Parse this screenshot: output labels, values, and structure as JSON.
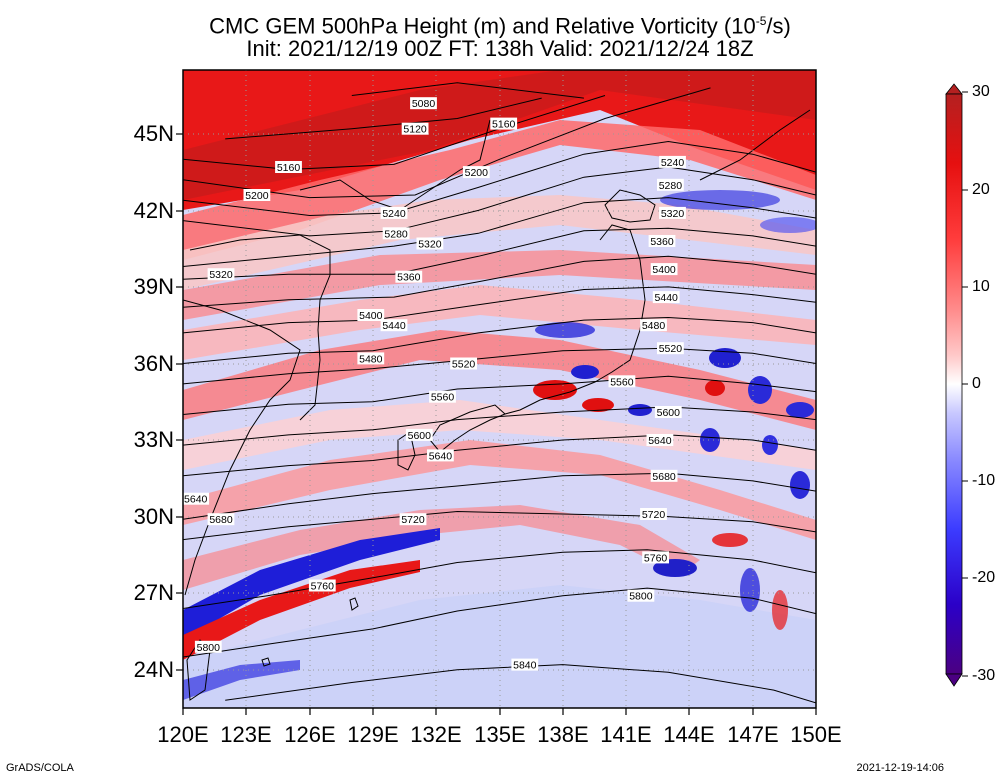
{
  "title": {
    "line1_prefix": "CMC GEM 500hPa Height (m) and Relative Vorticity (10",
    "line1_exp": "-5",
    "line1_suffix": "/s)",
    "line2": "Init: 2021/12/19 00Z  FT: 138h  Valid: 2021/12/24 18Z"
  },
  "axes": {
    "lat_labels": [
      "45N",
      "42N",
      "39N",
      "36N",
      "33N",
      "30N",
      "27N",
      "24N"
    ],
    "lon_labels": [
      "120E",
      "123E",
      "126E",
      "129E",
      "132E",
      "135E",
      "138E",
      "141E",
      "144E",
      "147E",
      "150E"
    ],
    "lat_range": [
      22.5,
      47.5
    ],
    "lon_range": [
      120,
      150
    ]
  },
  "colorbar": {
    "labels": [
      "30",
      "20",
      "10",
      "0",
      "-10",
      "-20",
      "-30"
    ],
    "colors": [
      "#4b0082",
      "#2b00c8",
      "#3c3cff",
      "#8a8aff",
      "#c8c8ff",
      "#ffffff",
      "#ffc8c8",
      "#ff8a8a",
      "#ff3c3c",
      "#e61010",
      "#b42020"
    ]
  },
  "contours": [
    {
      "label": "5080",
      "pts": [
        [
          128,
          46.5
        ],
        [
          133,
          47
        ],
        [
          139,
          46.4
        ]
      ]
    },
    {
      "label": "5120",
      "pts": [
        [
          122,
          44.8
        ],
        [
          128,
          45.2
        ],
        [
          133,
          45.6
        ],
        [
          137,
          46.4
        ]
      ]
    },
    {
      "label": "5160",
      "pts": [
        [
          120,
          44
        ],
        [
          125,
          43.6
        ],
        [
          130,
          43.8
        ],
        [
          135,
          45.2
        ],
        [
          140,
          46.5
        ]
      ]
    },
    {
      "label": "5200",
      "pts": [
        [
          120,
          43.2
        ],
        [
          126,
          42.5
        ],
        [
          131,
          42.6
        ],
        [
          135,
          44
        ],
        [
          140,
          45.6
        ],
        [
          145,
          46.8
        ]
      ]
    },
    {
      "label": "5240",
      "pts": [
        [
          120,
          42.4
        ],
        [
          126,
          41.8
        ],
        [
          130,
          41.9
        ],
        [
          134,
          42.9
        ],
        [
          139,
          44.2
        ],
        [
          143,
          44.7
        ],
        [
          147,
          44.2
        ],
        [
          150,
          43.5
        ]
      ]
    },
    {
      "label": "5280",
      "pts": [
        [
          120,
          41.6
        ],
        [
          126,
          41.0
        ],
        [
          130,
          41.2
        ],
        [
          134,
          42.0
        ],
        [
          139,
          43.3
        ],
        [
          143,
          43.7
        ],
        [
          147,
          43.2
        ],
        [
          150,
          42.6
        ]
      ]
    },
    {
      "label": "5320",
      "pts": [
        [
          120,
          39.8
        ],
        [
          125,
          40.2
        ],
        [
          130,
          40.6
        ],
        [
          134,
          41.1
        ],
        [
          139,
          42.3
        ],
        [
          143,
          42.5
        ],
        [
          147,
          42.1
        ],
        [
          150,
          41.7
        ]
      ]
    },
    {
      "label": "5360",
      "pts": [
        [
          120,
          39.3
        ],
        [
          125,
          39.5
        ],
        [
          130,
          39.5
        ],
        [
          134,
          40.2
        ],
        [
          139,
          41.2
        ],
        [
          143,
          41.3
        ],
        [
          147,
          41.0
        ],
        [
          150,
          40.6
        ]
      ]
    },
    {
      "label": "5400",
      "pts": [
        [
          120,
          38.2
        ],
        [
          125,
          38.5
        ],
        [
          130,
          38.6
        ],
        [
          134,
          39.2
        ],
        [
          139,
          40.0
        ],
        [
          143,
          40.2
        ],
        [
          147,
          39.9
        ],
        [
          150,
          39.5
        ]
      ]
    },
    {
      "label": "5440",
      "pts": [
        [
          120,
          37.2
        ],
        [
          125,
          37.6
        ],
        [
          129,
          37.7
        ],
        [
          134,
          38.3
        ],
        [
          139,
          38.9
        ],
        [
          143,
          39.0
        ],
        [
          147,
          38.7
        ],
        [
          150,
          38.4
        ]
      ]
    },
    {
      "label": "5480",
      "pts": [
        [
          120,
          36.0
        ],
        [
          125,
          36.4
        ],
        [
          129,
          36.5
        ],
        [
          134,
          37.2
        ],
        [
          139,
          37.7
        ],
        [
          143,
          37.8
        ],
        [
          147,
          37.6
        ],
        [
          150,
          37.2
        ]
      ]
    },
    {
      "label": "5520",
      "pts": [
        [
          120,
          35.2
        ],
        [
          125,
          35.6
        ],
        [
          129,
          35.8
        ],
        [
          133,
          36.1
        ],
        [
          138,
          36.5
        ],
        [
          143,
          36.6
        ],
        [
          147,
          36.4
        ],
        [
          150,
          36.0
        ]
      ]
    },
    {
      "label": "5560",
      "pts": [
        [
          120,
          34.0
        ],
        [
          125,
          34.4
        ],
        [
          129,
          34.5
        ],
        [
          133,
          35.0
        ],
        [
          138,
          35.2
        ],
        [
          143,
          35.5
        ],
        [
          147,
          35.2
        ],
        [
          150,
          34.9
        ]
      ]
    },
    {
      "label": "5600",
      "pts": [
        [
          120,
          32.8
        ],
        [
          125,
          33.2
        ],
        [
          129,
          33.4
        ],
        [
          133,
          33.8
        ],
        [
          138,
          34.1
        ],
        [
          143,
          34.3
        ],
        [
          147,
          34.1
        ],
        [
          150,
          33.8
        ]
      ]
    },
    {
      "label": "5640",
      "pts": [
        [
          120,
          31.6
        ],
        [
          125,
          32.0
        ],
        [
          129,
          32.2
        ],
        [
          133,
          32.6
        ],
        [
          138,
          33.0
        ],
        [
          143,
          33.2
        ],
        [
          147,
          33.0
        ],
        [
          150,
          32.6
        ]
      ]
    },
    {
      "label": "5680",
      "pts": [
        [
          120,
          29.9
        ],
        [
          125,
          30.5
        ],
        [
          129,
          30.9
        ],
        [
          133,
          31.2
        ],
        [
          138,
          31.6
        ],
        [
          143,
          31.7
        ],
        [
          147,
          31.4
        ],
        [
          150,
          31.0
        ]
      ]
    },
    {
      "label": "5720",
      "pts": [
        [
          120,
          29.1
        ],
        [
          125,
          29.6
        ],
        [
          129,
          29.9
        ],
        [
          133,
          30.2
        ],
        [
          138,
          30.1
        ],
        [
          143,
          30.0
        ],
        [
          147,
          29.8
        ],
        [
          150,
          29.4
        ]
      ]
    },
    {
      "label": "5760",
      "pts": [
        [
          120,
          26.4
        ],
        [
          124,
          26.9
        ],
        [
          129,
          27.6
        ],
        [
          133,
          28.2
        ],
        [
          138,
          28.6
        ],
        [
          142,
          28.7
        ],
        [
          147,
          28.3
        ],
        [
          150,
          27.8
        ]
      ]
    },
    {
      "label": "5800",
      "pts": [
        [
          120,
          24.5
        ],
        [
          124,
          25.0
        ],
        [
          129,
          25.6
        ],
        [
          133,
          26.3
        ],
        [
          138,
          26.9
        ],
        [
          142,
          27.2
        ],
        [
          147,
          26.8
        ],
        [
          150,
          26.2
        ]
      ]
    },
    {
      "label": "5840",
      "pts": [
        [
          122,
          22.8
        ],
        [
          128,
          23.5
        ],
        [
          133,
          24.0
        ],
        [
          138,
          24.2
        ],
        [
          143,
          23.9
        ],
        [
          148,
          23.2
        ],
        [
          150,
          22.7
        ]
      ]
    }
  ],
  "contour_labels": [
    {
      "text": "5080",
      "lon": 131.4,
      "lat": 46.2
    },
    {
      "text": "5120",
      "lon": 131.0,
      "lat": 45.2
    },
    {
      "text": "5160",
      "lon": 135.2,
      "lat": 45.4
    },
    {
      "text": "5160",
      "lon": 125.0,
      "lat": 43.7
    },
    {
      "text": "5200",
      "lon": 123.5,
      "lat": 42.6
    },
    {
      "text": "5200",
      "lon": 133.9,
      "lat": 43.5
    },
    {
      "text": "5240",
      "lon": 130.0,
      "lat": 41.9
    },
    {
      "text": "5240",
      "lon": 143.2,
      "lat": 43.9
    },
    {
      "text": "5280",
      "lon": 130.1,
      "lat": 41.1
    },
    {
      "text": "5280",
      "lon": 143.1,
      "lat": 43.0
    },
    {
      "text": "5320",
      "lon": 131.7,
      "lat": 40.7
    },
    {
      "text": "5320",
      "lon": 143.2,
      "lat": 41.9
    },
    {
      "text": "5320",
      "lon": 121.8,
      "lat": 39.5
    },
    {
      "text": "5360",
      "lon": 142.7,
      "lat": 40.8
    },
    {
      "text": "5360",
      "lon": 130.7,
      "lat": 39.4
    },
    {
      "text": "5400",
      "lon": 142.8,
      "lat": 39.7
    },
    {
      "text": "5400",
      "lon": 128.9,
      "lat": 37.9
    },
    {
      "text": "5440",
      "lon": 142.9,
      "lat": 38.6
    },
    {
      "text": "5440",
      "lon": 130.0,
      "lat": 37.5
    },
    {
      "text": "5480",
      "lon": 142.3,
      "lat": 37.5
    },
    {
      "text": "5480",
      "lon": 128.9,
      "lat": 36.2
    },
    {
      "text": "5520",
      "lon": 143.1,
      "lat": 36.6
    },
    {
      "text": "5520",
      "lon": 133.3,
      "lat": 36.0
    },
    {
      "text": "5560",
      "lon": 140.8,
      "lat": 35.3
    },
    {
      "text": "5560",
      "lon": 132.3,
      "lat": 34.7
    },
    {
      "text": "5600",
      "lon": 143.0,
      "lat": 34.1
    },
    {
      "text": "5600",
      "lon": 131.2,
      "lat": 33.2
    },
    {
      "text": "5640",
      "lon": 142.6,
      "lat": 33.0
    },
    {
      "text": "5640",
      "lon": 132.2,
      "lat": 32.4
    },
    {
      "text": "5640",
      "lon": 120.6,
      "lat": 30.7
    },
    {
      "text": "5680",
      "lon": 142.8,
      "lat": 31.6
    },
    {
      "text": "5680",
      "lon": 121.8,
      "lat": 29.9
    },
    {
      "text": "5720",
      "lon": 142.3,
      "lat": 30.1
    },
    {
      "text": "5720",
      "lon": 130.9,
      "lat": 29.9
    },
    {
      "text": "5760",
      "lon": 142.4,
      "lat": 28.4
    },
    {
      "text": "5760",
      "lon": 126.6,
      "lat": 27.3
    },
    {
      "text": "5800",
      "lon": 141.7,
      "lat": 26.9
    },
    {
      "text": "5800",
      "lon": 121.2,
      "lat": 24.9
    },
    {
      "text": "5840",
      "lon": 136.2,
      "lat": 24.2
    }
  ],
  "credits": {
    "left": "GrADS/COLA",
    "right": "2021-12-19-14:06"
  }
}
